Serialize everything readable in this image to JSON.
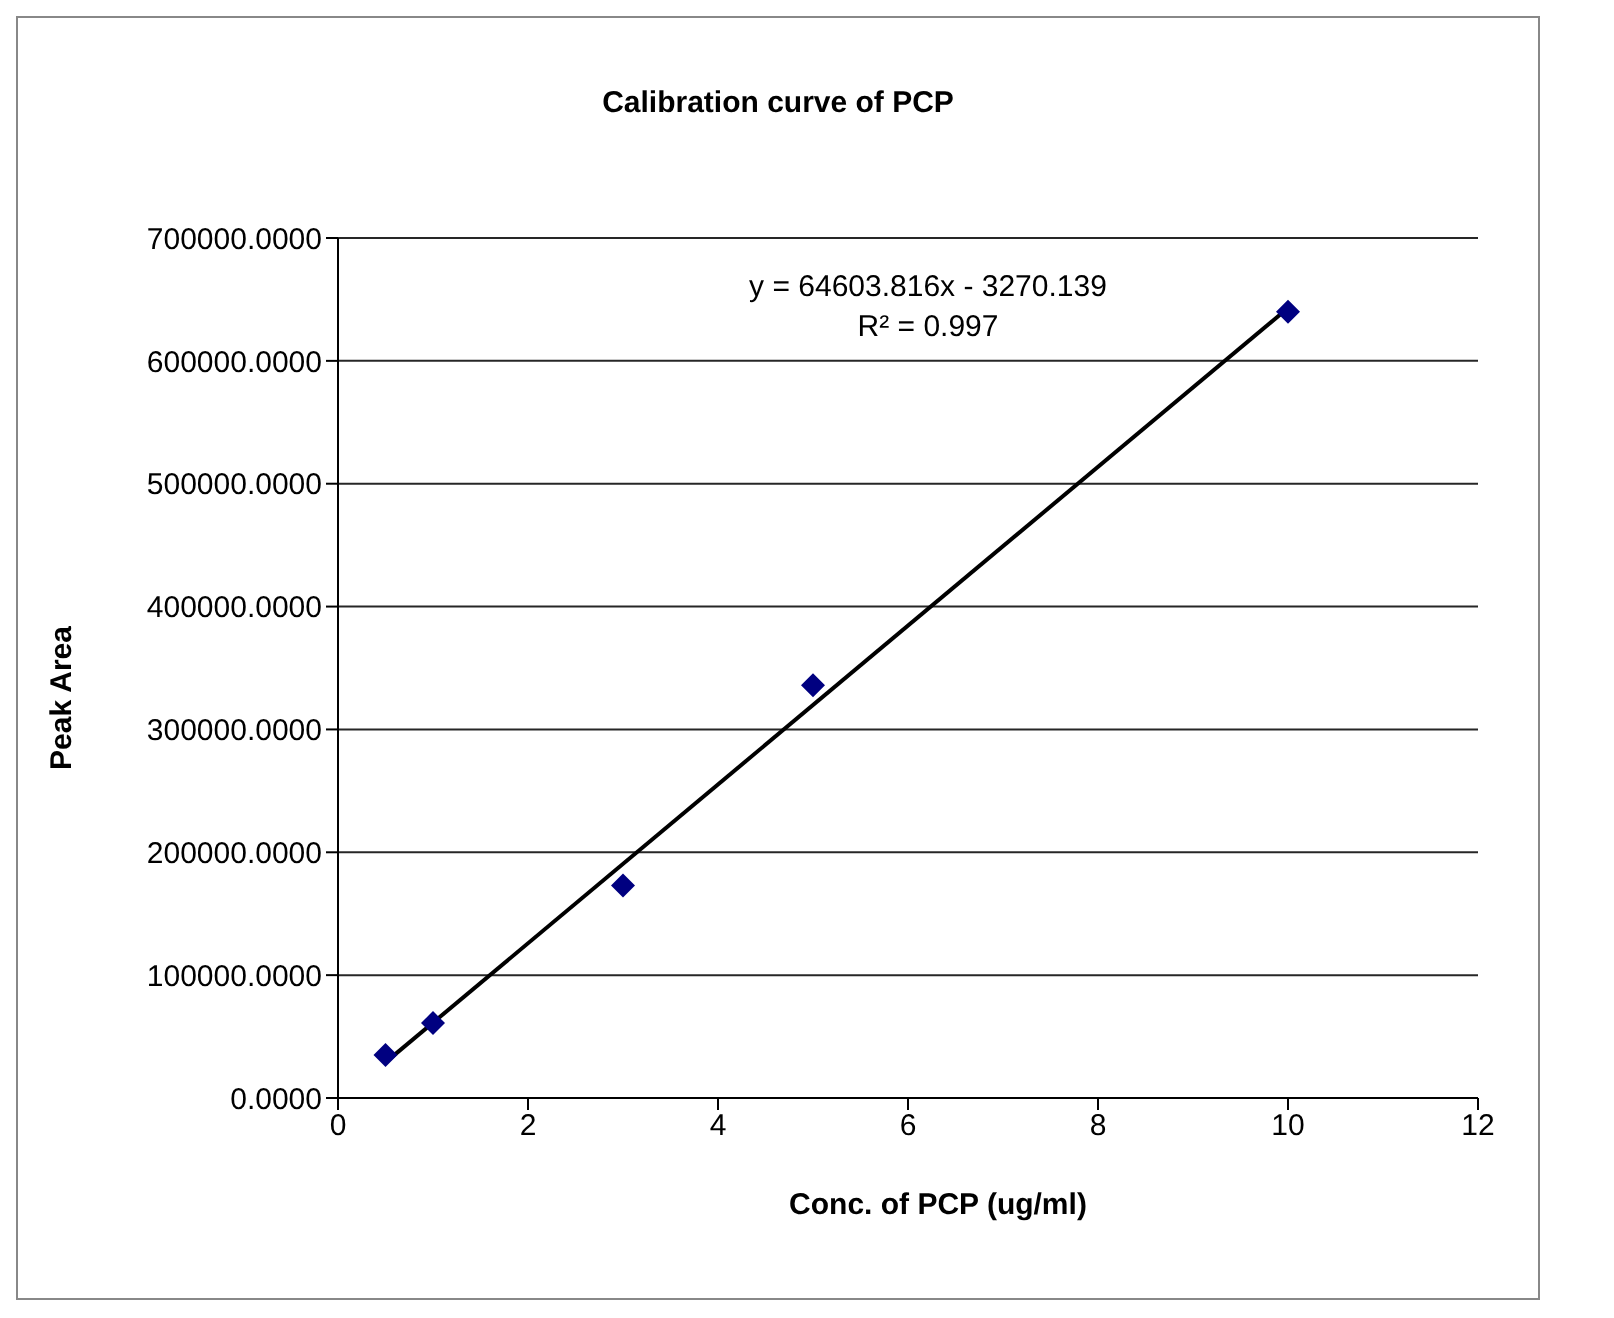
{
  "chart_data": {
    "type": "scatter",
    "title": "Calibration curve of PCP",
    "xlabel": "Conc. of PCP (ug/ml)",
    "ylabel": "Peak Area",
    "x": [
      0.5,
      1,
      3,
      5,
      10
    ],
    "series": [
      {
        "color": "#000080",
        "values": [
          35000,
          61000,
          173000,
          336000,
          640000
        ],
        "marker": "diamond"
      },
      {
        "type": "line",
        "color": "#000000",
        "x": [
          0.5,
          10
        ],
        "values": [
          29000,
          643000
        ],
        "marker": "none",
        "line_style": "solid"
      }
    ],
    "xlim": [
      0,
      12
    ],
    "xticks": [
      0,
      2,
      4,
      6,
      8,
      10,
      12
    ],
    "ylim": [
      0,
      700000
    ],
    "yticks": [
      {
        "value": 0,
        "label": "0.0000"
      },
      {
        "value": 100000,
        "label": "100000.0000"
      },
      {
        "value": 200000,
        "label": "200000.0000"
      },
      {
        "value": 300000,
        "label": "300000.0000"
      },
      {
        "value": 400000,
        "label": "400000.0000"
      },
      {
        "value": 500000,
        "label": "500000.0000"
      },
      {
        "value": 600000,
        "label": "600000.0000"
      },
      {
        "value": 700000,
        "label": "700000.0000"
      }
    ],
    "grid": "y",
    "legend": false,
    "annotations": [
      "y = 64603.816x - 3270.139",
      "R² = 0.997"
    ]
  }
}
